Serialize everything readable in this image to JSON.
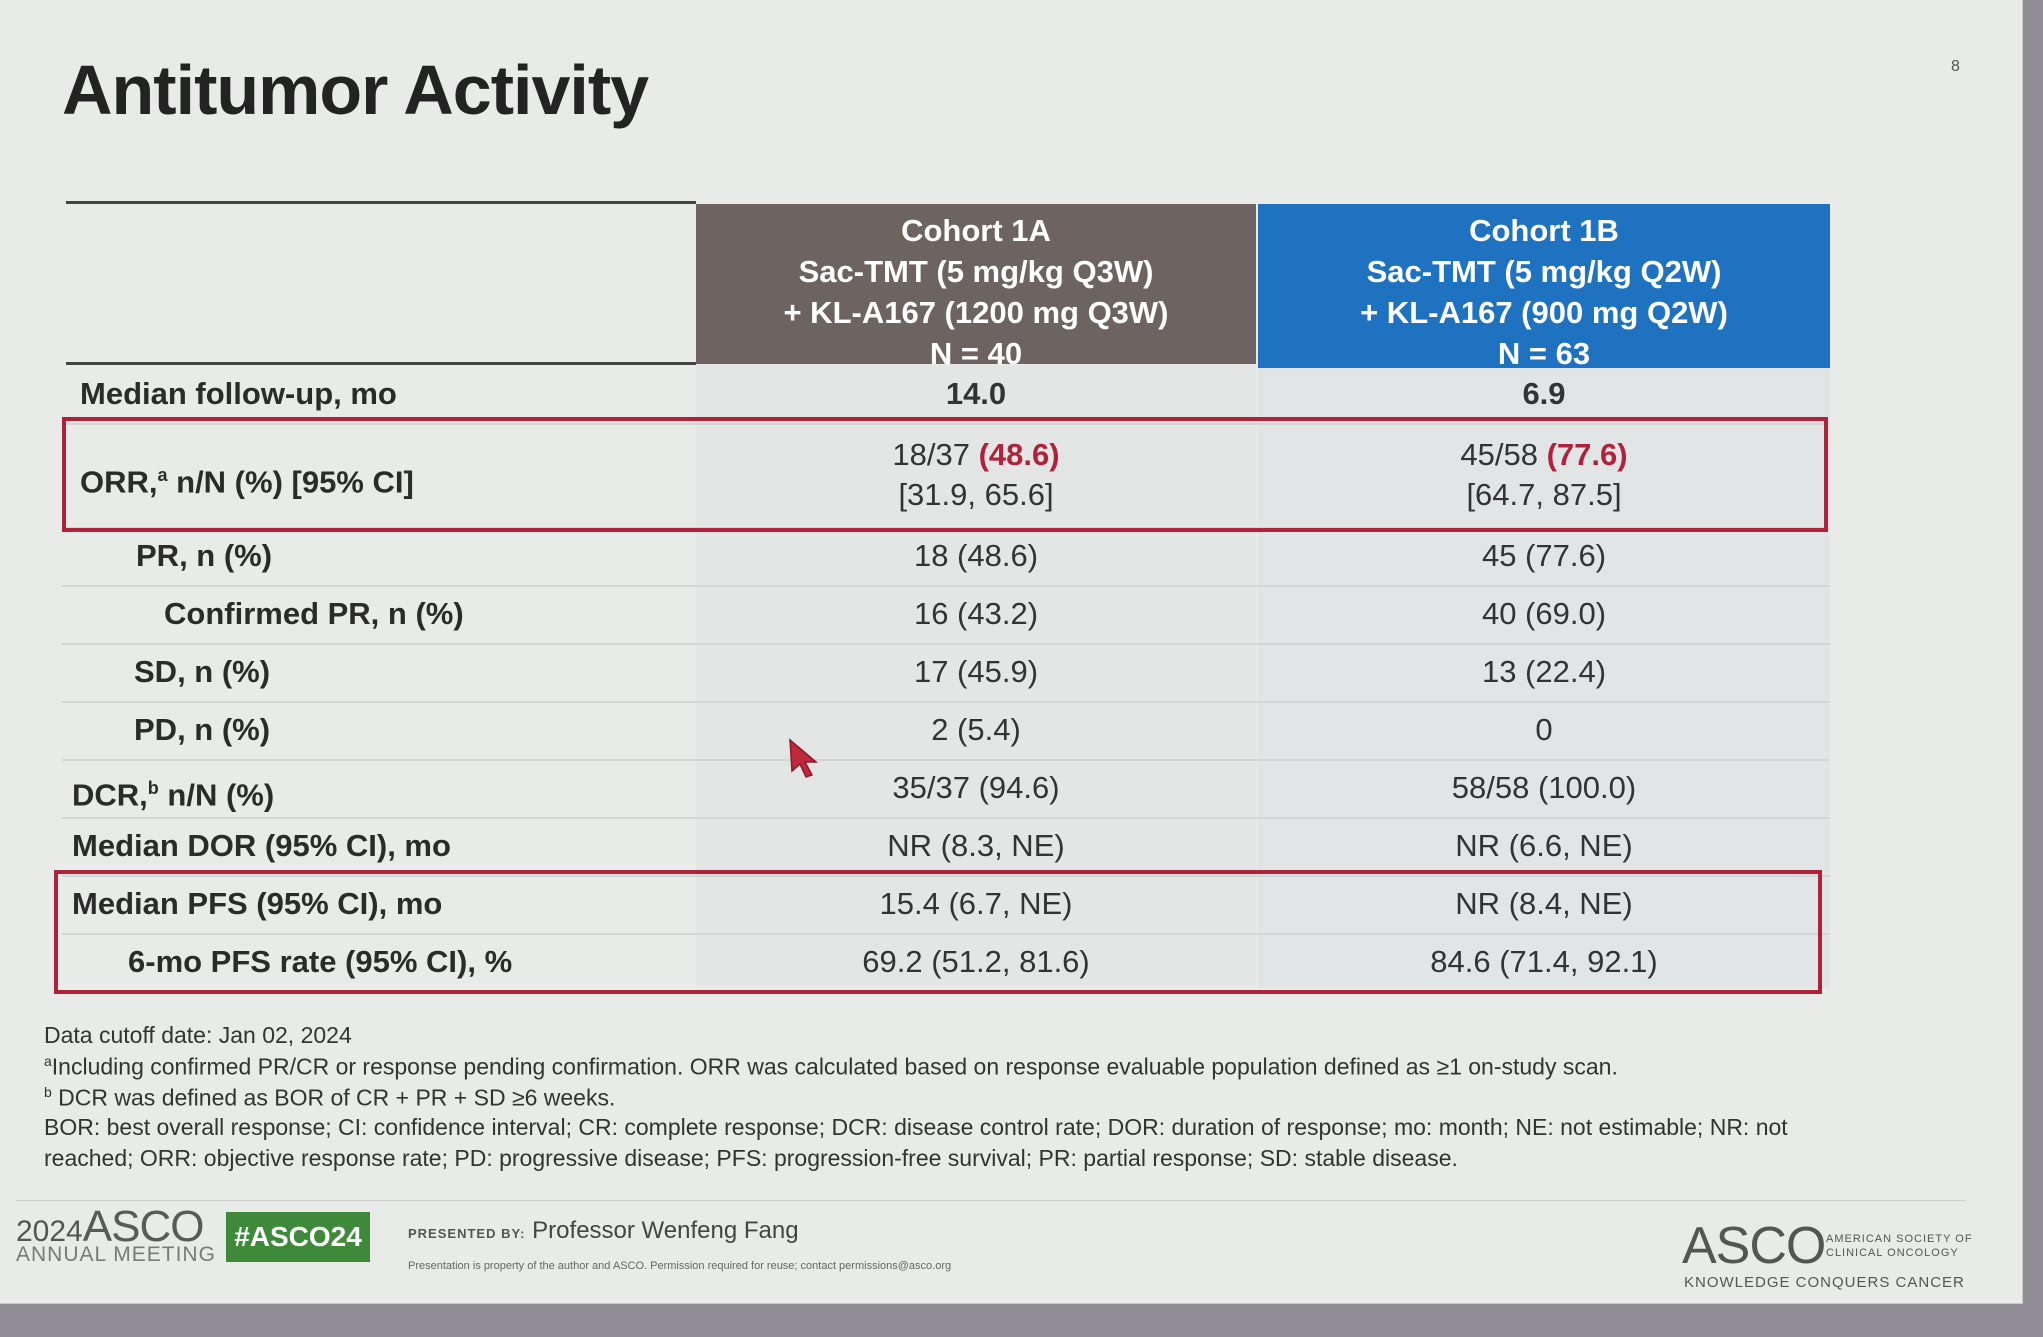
{
  "slide": {
    "title": "Antitumor Activity",
    "page_number": "8"
  },
  "table": {
    "columns": [
      {
        "lines": [
          "Cohort 1A",
          "Sac-TMT (5 mg/kg Q3W)",
          "+ KL-A167 (1200 mg Q3W)",
          "N = 40"
        ],
        "color": "#6d6462"
      },
      {
        "lines": [
          "Cohort 1B",
          "Sac-TMT (5 mg/kg Q2W)",
          "+ KL-A167 (900 mg Q2W)",
          "N = 63"
        ],
        "color": "#1f72c0"
      }
    ],
    "rows": [
      {
        "label": "Median follow-up, mo",
        "v1": "14.0",
        "v2": "6.9"
      },
      {
        "label": "ORR,",
        "label_sup": "a",
        "label_rest": " n/N (%) [95% CI]",
        "v1_pre": "18/37 ",
        "v1_hl": "(48.6)",
        "v1_ci": "[31.9, 65.6]",
        "v2_pre": "45/58 ",
        "v2_hl": "(77.6)",
        "v2_ci": "[64.7, 87.5]"
      },
      {
        "label": "PR, n (%)",
        "v1": "18 (48.6)",
        "v2": "45 (77.6)"
      },
      {
        "label": "Confirmed PR, n (%)",
        "v1": "16 (43.2)",
        "v2": "40 (69.0)"
      },
      {
        "label": "SD, n (%)",
        "v1": "17 (45.9)",
        "v2": "13 (22.4)"
      },
      {
        "label": "PD, n (%)",
        "v1": "2 (5.4)",
        "v2": "0"
      },
      {
        "label": "DCR,",
        "label_sup": "b",
        "label_rest": " n/N (%)",
        "v1": "35/37 (94.6)",
        "v2": "58/58 (100.0)"
      },
      {
        "label": "Median DOR (95% CI), mo",
        "v1": "NR (8.3, NE)",
        "v2": "NR (6.6, NE)"
      },
      {
        "label": "Median PFS (95% CI), mo",
        "v1": "15.4 (6.7, NE)",
        "v2": "NR (8.4, NE)"
      },
      {
        "label": "6-mo PFS rate (95% CI), %",
        "v1": "69.2 (51.2, 81.6)",
        "v2": "84.6 (71.4, 92.1)"
      }
    ],
    "highlight_color": "#b0213a"
  },
  "footnotes": {
    "cutoff": "Data cutoff date: Jan 02, 2024",
    "a_sup": "a",
    "a": "Including confirmed PR/CR or response pending confirmation. ORR was calculated based on response evaluable population defined as ≥1 on-study scan.",
    "b_sup": "b",
    "b": " DCR was defined as BOR of CR + PR + SD ≥6 weeks.",
    "abbr1": "BOR: best overall response; CI: confidence interval; CR: complete response; DCR: disease control rate; DOR: duration of response; mo: month; NE: not estimable; NR: not",
    "abbr2": "reached; ORR: objective response rate; PD: progressive disease; PFS: progression-free survival; PR: partial response; SD: stable disease."
  },
  "footer": {
    "year": "2024",
    "asco": "ASCO",
    "meeting": "ANNUAL MEETING",
    "hashtag": "#ASCO24",
    "presented_by_label": "PRESENTED BY:",
    "presenter": "Professor Wenfeng Fang",
    "property": "Presentation is property of the author and ASCO. Permission required for reuse; contact permissions@asco.org",
    "logo": "ASCO",
    "society_line1": "AMERICAN SOCIETY OF",
    "society_line2": "CLINICAL ONCOLOGY",
    "tagline": "KNOWLEDGE CONQUERS CANCER",
    "hashtag_color": "#3f8a3a"
  }
}
